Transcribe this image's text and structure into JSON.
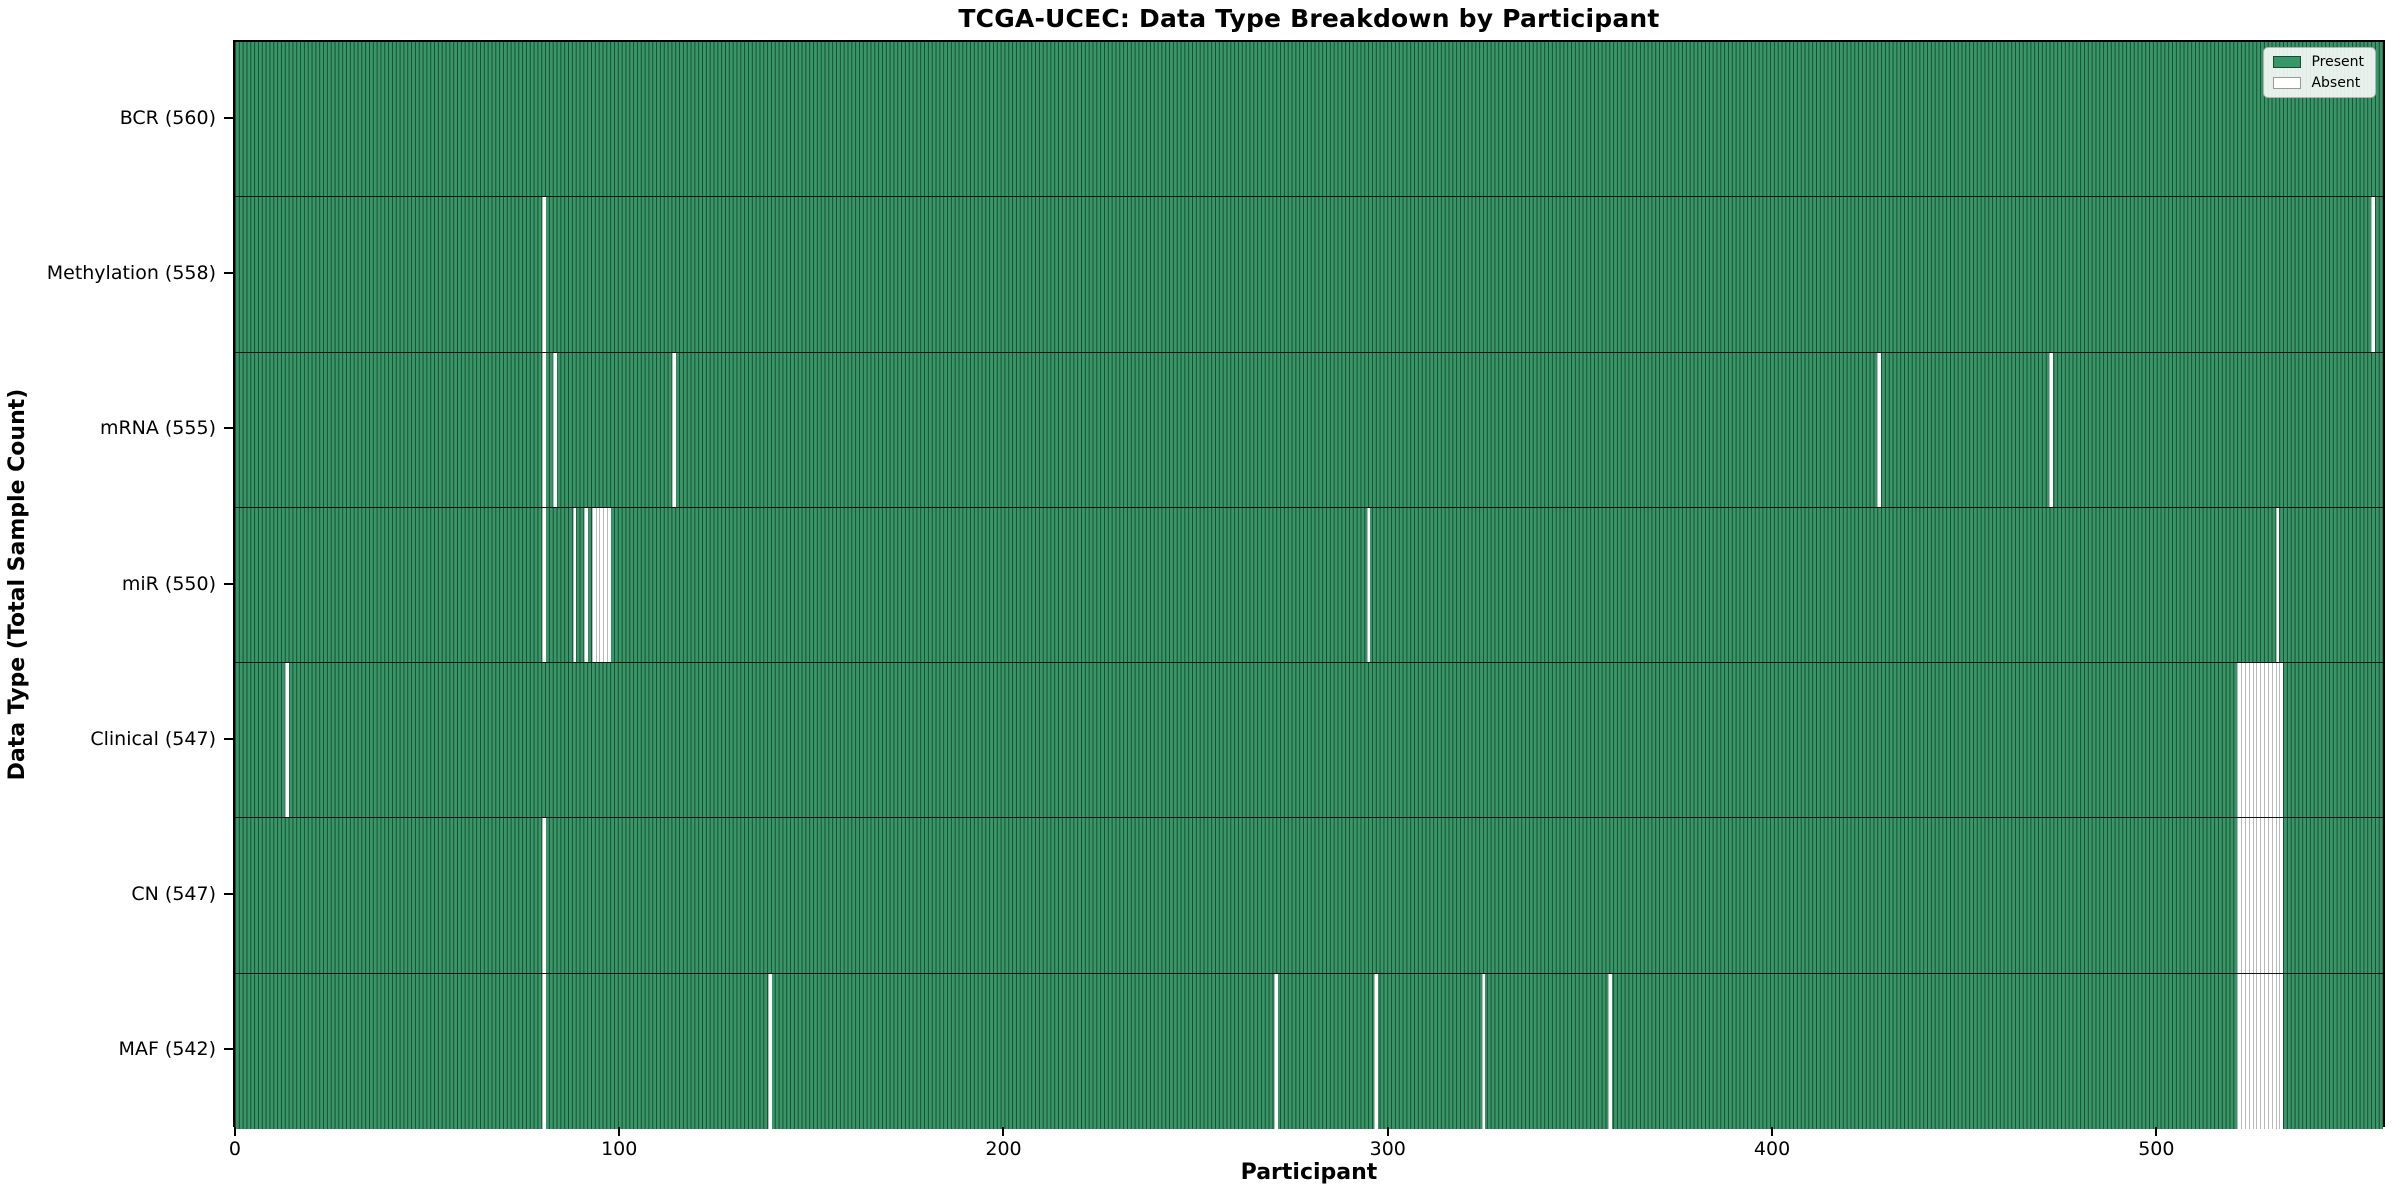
{
  "chart_data": {
    "type": "heatmap",
    "title": "TCGA-UCEC: Data Type Breakdown by Participant",
    "xlabel": "Participant",
    "ylabel": "Data Type (Total Sample Count)",
    "n_participants": 560,
    "x_axis": {
      "min": 0,
      "max": 560,
      "tick_values": [
        0,
        100,
        200,
        300,
        400,
        500
      ],
      "tick_labels": [
        "0",
        "100",
        "200",
        "300",
        "400",
        "500"
      ]
    },
    "grid": false,
    "legend_position": "upper right",
    "legend": [
      {
        "label": "Present",
        "color": "#389768"
      },
      {
        "label": "Absent",
        "color": "#ffffff"
      }
    ],
    "colors": {
      "present_fill": "#389768",
      "present_edge": "#1b4a30",
      "absent_fill": "#ffffff",
      "absent_edge": "#b9b9b9"
    },
    "rows": [
      {
        "data_type": "BCR",
        "count": 560,
        "label": "BCR (560)",
        "absent_participants": []
      },
      {
        "data_type": "Methylation",
        "count": 558,
        "label": "Methylation (558)",
        "absent_participants": [
          80,
          557
        ]
      },
      {
        "data_type": "mRNA",
        "count": 555,
        "label": "mRNA (555)",
        "absent_participants": [
          80,
          83,
          114,
          428,
          473
        ]
      },
      {
        "data_type": "miR",
        "count": 550,
        "label": "miR (550)",
        "absent_participants": [
          80,
          88,
          91,
          93,
          94,
          95,
          96,
          97,
          295,
          532
        ]
      },
      {
        "data_type": "Clinical",
        "count": 547,
        "label": "Clinical (547)",
        "absent_participants": [
          13,
          522,
          523,
          524,
          525,
          526,
          527,
          528,
          529,
          530,
          531,
          532,
          533
        ]
      },
      {
        "data_type": "CN",
        "count": 547,
        "label": "CN (547)",
        "absent_participants": [
          80,
          522,
          523,
          524,
          525,
          526,
          527,
          528,
          529,
          530,
          531,
          532,
          533
        ]
      },
      {
        "data_type": "MAF",
        "count": 542,
        "label": "MAF (542)",
        "absent_participants": [
          80,
          139,
          271,
          297,
          325,
          358,
          522,
          523,
          524,
          525,
          526,
          527,
          528,
          529,
          530,
          531,
          532,
          533
        ]
      }
    ]
  }
}
